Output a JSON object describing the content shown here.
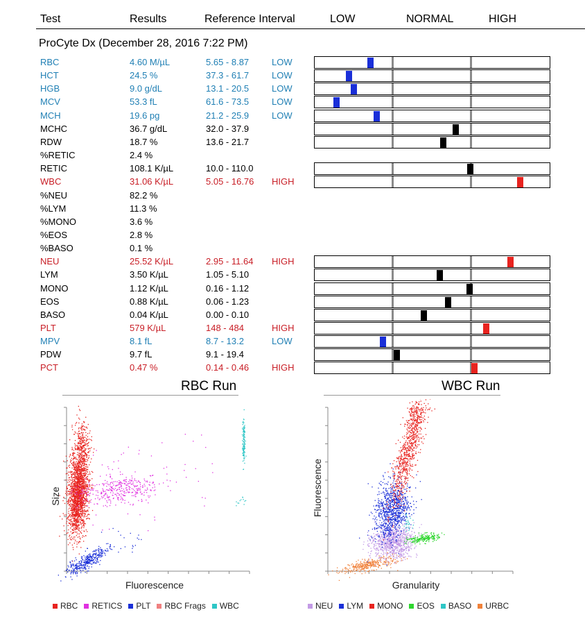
{
  "header": {
    "test": "Test",
    "results": "Results",
    "reference": "Reference Interval",
    "low": "LOW",
    "normal": "NORMAL",
    "high": "HIGH"
  },
  "subtitle": "ProCyte Dx (December 28, 2016 7:22 PM)",
  "colors": {
    "low": "#1f7fb4",
    "high": "#c81d25",
    "normal": "#000000",
    "marker_low": "#1a2fd8",
    "marker_high": "#e8231f",
    "marker_normal": "#000000"
  },
  "rows": [
    {
      "test": "RBC",
      "result": "4.60 M/µL",
      "ref": "5.65 - 8.87",
      "flag": "LOW",
      "status": "low",
      "marker": 0.7
    },
    {
      "test": "HCT",
      "result": "24.5 %",
      "ref": "37.3 - 61.7",
      "flag": "LOW",
      "status": "low",
      "marker": 0.43
    },
    {
      "test": "HGB",
      "result": "9.0 g/dL",
      "ref": "13.1 - 20.5",
      "flag": "LOW",
      "status": "low",
      "marker": 0.49
    },
    {
      "test": "MCV",
      "result": "53.3 fL",
      "ref": "61.6 - 73.5",
      "flag": "LOW",
      "status": "low",
      "marker": 0.27
    },
    {
      "test": "MCH",
      "result": "19.6 pg",
      "ref": "21.2 - 25.9",
      "flag": "LOW",
      "status": "low",
      "marker": 0.78
    },
    {
      "test": "MCHC",
      "result": "36.7 g/dL",
      "ref": "32.0 - 37.9",
      "flag": "",
      "status": "normal",
      "marker": 0.79
    },
    {
      "test": "RDW",
      "result": "18.7 %",
      "ref": "13.6 - 21.7",
      "flag": "",
      "status": "normal",
      "marker": 0.63
    },
    {
      "test": "%RETIC",
      "result": "2.4 %",
      "ref": "",
      "flag": "",
      "status": "normal",
      "marker": null
    },
    {
      "test": "RETIC",
      "result": "108.1 K/µL",
      "ref": "10.0 - 110.0",
      "flag": "",
      "status": "normal",
      "marker": 0.97
    },
    {
      "test": "WBC",
      "result": "31.06 K/µL",
      "ref": "5.05 - 16.76",
      "flag": "HIGH",
      "status": "high",
      "marker": 0.6
    },
    {
      "test": "%NEU",
      "result": "82.2 %",
      "ref": "",
      "flag": "",
      "status": "normal",
      "marker": null
    },
    {
      "test": "%LYM",
      "result": "11.3 %",
      "ref": "",
      "flag": "",
      "status": "normal",
      "marker": null
    },
    {
      "test": "%MONO",
      "result": "3.6 %",
      "ref": "",
      "flag": "",
      "status": "normal",
      "marker": null
    },
    {
      "test": "%EOS",
      "result": "2.8 %",
      "ref": "",
      "flag": "",
      "status": "normal",
      "marker": null
    },
    {
      "test": "%BASO",
      "result": "0.1 %",
      "ref": "",
      "flag": "",
      "status": "normal",
      "marker": null
    },
    {
      "test": "NEU",
      "result": "25.52 K/µL",
      "ref": "2.95 - 11.64",
      "flag": "HIGH",
      "status": "high",
      "marker": 0.48
    },
    {
      "test": "LYM",
      "result": "3.50 K/µL",
      "ref": "1.05 - 5.10",
      "flag": "",
      "status": "normal",
      "marker": 0.58
    },
    {
      "test": "MONO",
      "result": "1.12 K/µL",
      "ref": "0.16 - 1.12",
      "flag": "",
      "status": "normal",
      "marker": 0.96
    },
    {
      "test": "EOS",
      "result": "0.88 K/µL",
      "ref": "0.06 - 1.23",
      "flag": "",
      "status": "normal",
      "marker": 0.69
    },
    {
      "test": "BASO",
      "result": "0.04 K/µL",
      "ref": "0.00 - 0.10",
      "flag": "",
      "status": "normal",
      "marker": 0.38
    },
    {
      "test": "PLT",
      "result": "579 K/µL",
      "ref": "148 - 484",
      "flag": "HIGH",
      "status": "high",
      "marker": 0.17
    },
    {
      "test": "MPV",
      "result": "8.1 fL",
      "ref": "8.7 - 13.2",
      "flag": "LOW",
      "status": "low",
      "marker": 0.86
    },
    {
      "test": "PDW",
      "result": "9.7 fL",
      "ref": "9.1 - 19.4",
      "flag": "",
      "status": "normal",
      "marker": 0.04
    },
    {
      "test": "PCT",
      "result": "0.47 %",
      "ref": "0.14 - 0.46",
      "flag": "HIGH",
      "status": "high",
      "marker": 0.02
    }
  ],
  "chart_data": [
    {
      "type": "scatter",
      "title": "RBC Run",
      "xlabel": "Fluorescence",
      "ylabel": "Size",
      "series": [
        {
          "name": "RBC",
          "color": "#e8231f"
        },
        {
          "name": "RETICS",
          "color": "#e030e0"
        },
        {
          "name": "PLT",
          "color": "#1a2fd8"
        },
        {
          "name": "RBC Frags",
          "color": "#f08080"
        },
        {
          "name": "WBC",
          "color": "#2ec6c6"
        }
      ]
    },
    {
      "type": "scatter",
      "title": "WBC Run",
      "xlabel": "Granularity",
      "ylabel": "Fluorescence",
      "series": [
        {
          "name": "NEU",
          "color": "#c39be6"
        },
        {
          "name": "LYM",
          "color": "#1a2fd8"
        },
        {
          "name": "MONO",
          "color": "#e8231f"
        },
        {
          "name": "EOS",
          "color": "#2ed62e"
        },
        {
          "name": "BASO",
          "color": "#2ec6c6"
        },
        {
          "name": "URBC",
          "color": "#f0813a"
        }
      ]
    }
  ]
}
